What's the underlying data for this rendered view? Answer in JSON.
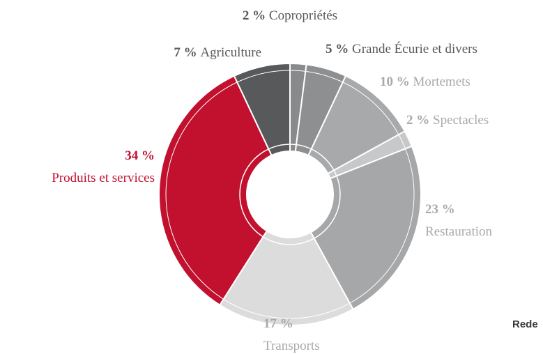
{
  "chart_data": {
    "type": "pie",
    "categories": [
      "Copropriétés",
      "Grande Écurie et divers",
      "Mortemets",
      "Spectacles",
      "Restauration",
      "Transports",
      "Produits et services",
      "Agriculture"
    ],
    "values": [
      2,
      5,
      10,
      2,
      23,
      17,
      34,
      7
    ],
    "value_labels": [
      "2 %",
      "5 %",
      "10 %",
      "2 %",
      "23 %",
      "17 %",
      "34 %",
      "7 %"
    ],
    "colors": [
      "#898a8c",
      "#8e8f91",
      "#a8a9ab",
      "#c7c8ca",
      "#a6a7a9",
      "#dcdcdd",
      "#c1112f",
      "#58595b"
    ],
    "label_colors": [
      "#58595b",
      "#58595b",
      "#a8a9ab",
      "#a8a9ab",
      "#a8a9ab",
      "#a8a9ab",
      "#c1112f",
      "#58595b"
    ],
    "footer_text": "Rede"
  }
}
